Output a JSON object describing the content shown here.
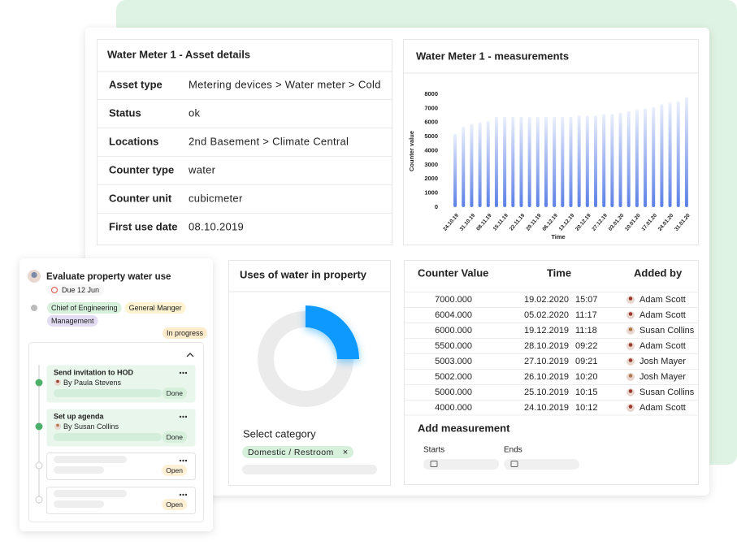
{
  "asset_details": {
    "title": "Water Meter 1 - Asset details",
    "rows": [
      [
        "Asset type",
        "Metering devices > Water meter > Cold"
      ],
      [
        "Status",
        "ok"
      ],
      [
        "Locations",
        "2nd Basement > Climate Central"
      ],
      [
        "Counter type",
        "water"
      ],
      [
        "Counter unit",
        "cubicmeter"
      ],
      [
        "First use date",
        "08.10.2019"
      ]
    ]
  },
  "chart_data": [
    {
      "type": "bar",
      "title": "Water Meter 1 - measurements",
      "y_label": "Counter value",
      "x_label": "Time",
      "categories": [
        "24.10.19",
        null,
        "31.10.19",
        null,
        "08.11.19",
        null,
        "15.11.19",
        null,
        "22.11.19",
        null,
        "29.11.19",
        null,
        "06.12.19",
        null,
        "13.12.19",
        null,
        "20.12.19",
        null,
        "27.12.19",
        null,
        "03.01.20",
        null,
        "10.01.20",
        null,
        "17.01.20",
        null,
        "24.01.20",
        null,
        "31.01.20"
      ],
      "values": [
        5200,
        5700,
        5900,
        6000,
        6100,
        6400,
        6400,
        6400,
        6400,
        6400,
        6400,
        6400,
        6400,
        6400,
        6400,
        6500,
        6500,
        6500,
        6600,
        6600,
        6700,
        6800,
        6900,
        7000,
        7100,
        7300,
        7400,
        7500,
        7800
      ],
      "color": "#5b7fe6",
      "ylim": [
        0,
        8000
      ],
      "yticks": [
        0,
        1000,
        2000,
        3000,
        4000,
        5000,
        6000,
        7000,
        8000
      ]
    },
    {
      "type": "donut",
      "title": "Uses of water in property",
      "values": [
        25
      ],
      "color": "#0d99ff"
    }
  ],
  "category_select": {
    "label": "Select category",
    "tag": "Domestic / Restroom",
    "remove": "×"
  },
  "measurements_table": {
    "headers": [
      "Counter Value",
      "Time",
      "Added by"
    ],
    "rows": [
      [
        "7000.000",
        "19.02.2020",
        "15:07",
        "Adam Scott"
      ],
      [
        "6004.000",
        "05.02.2020",
        "11:17",
        "Adam Scott"
      ],
      [
        "6000.000",
        "19.12.2019",
        "11:18",
        "Susan Collins"
      ],
      [
        "5500.000",
        "28.10.2019",
        "09:22",
        "Adam Scott"
      ],
      [
        "5003.000",
        "27.10.2019",
        "09:21",
        "Josh Mayer"
      ],
      [
        "5002.000",
        "26.10.2019",
        "10:20",
        "Josh Mayer"
      ],
      [
        "5000.000",
        "25.10.2019",
        "10:15",
        "Susan Collins"
      ],
      [
        "4000.000",
        "24.10.2019",
        "10:12",
        "Adam Scott"
      ]
    ]
  },
  "add_measurement": {
    "title": "Add measurement",
    "fields": [
      "Starts",
      "Ends"
    ]
  },
  "task": {
    "title": "Evaluate property water use",
    "due": "Due 12 Jun",
    "tags": [
      "Chief of Engineering",
      "General Manger",
      "Management"
    ],
    "status": "In progress",
    "subtasks": [
      {
        "title": "Send invitation to HOD",
        "by": "By Paula Stevens",
        "status": "Done"
      },
      {
        "title": "Set up agenda",
        "by": "By Susan Collins",
        "status": "Done"
      },
      {
        "status": "Open"
      },
      {
        "status": "Open"
      }
    ]
  }
}
